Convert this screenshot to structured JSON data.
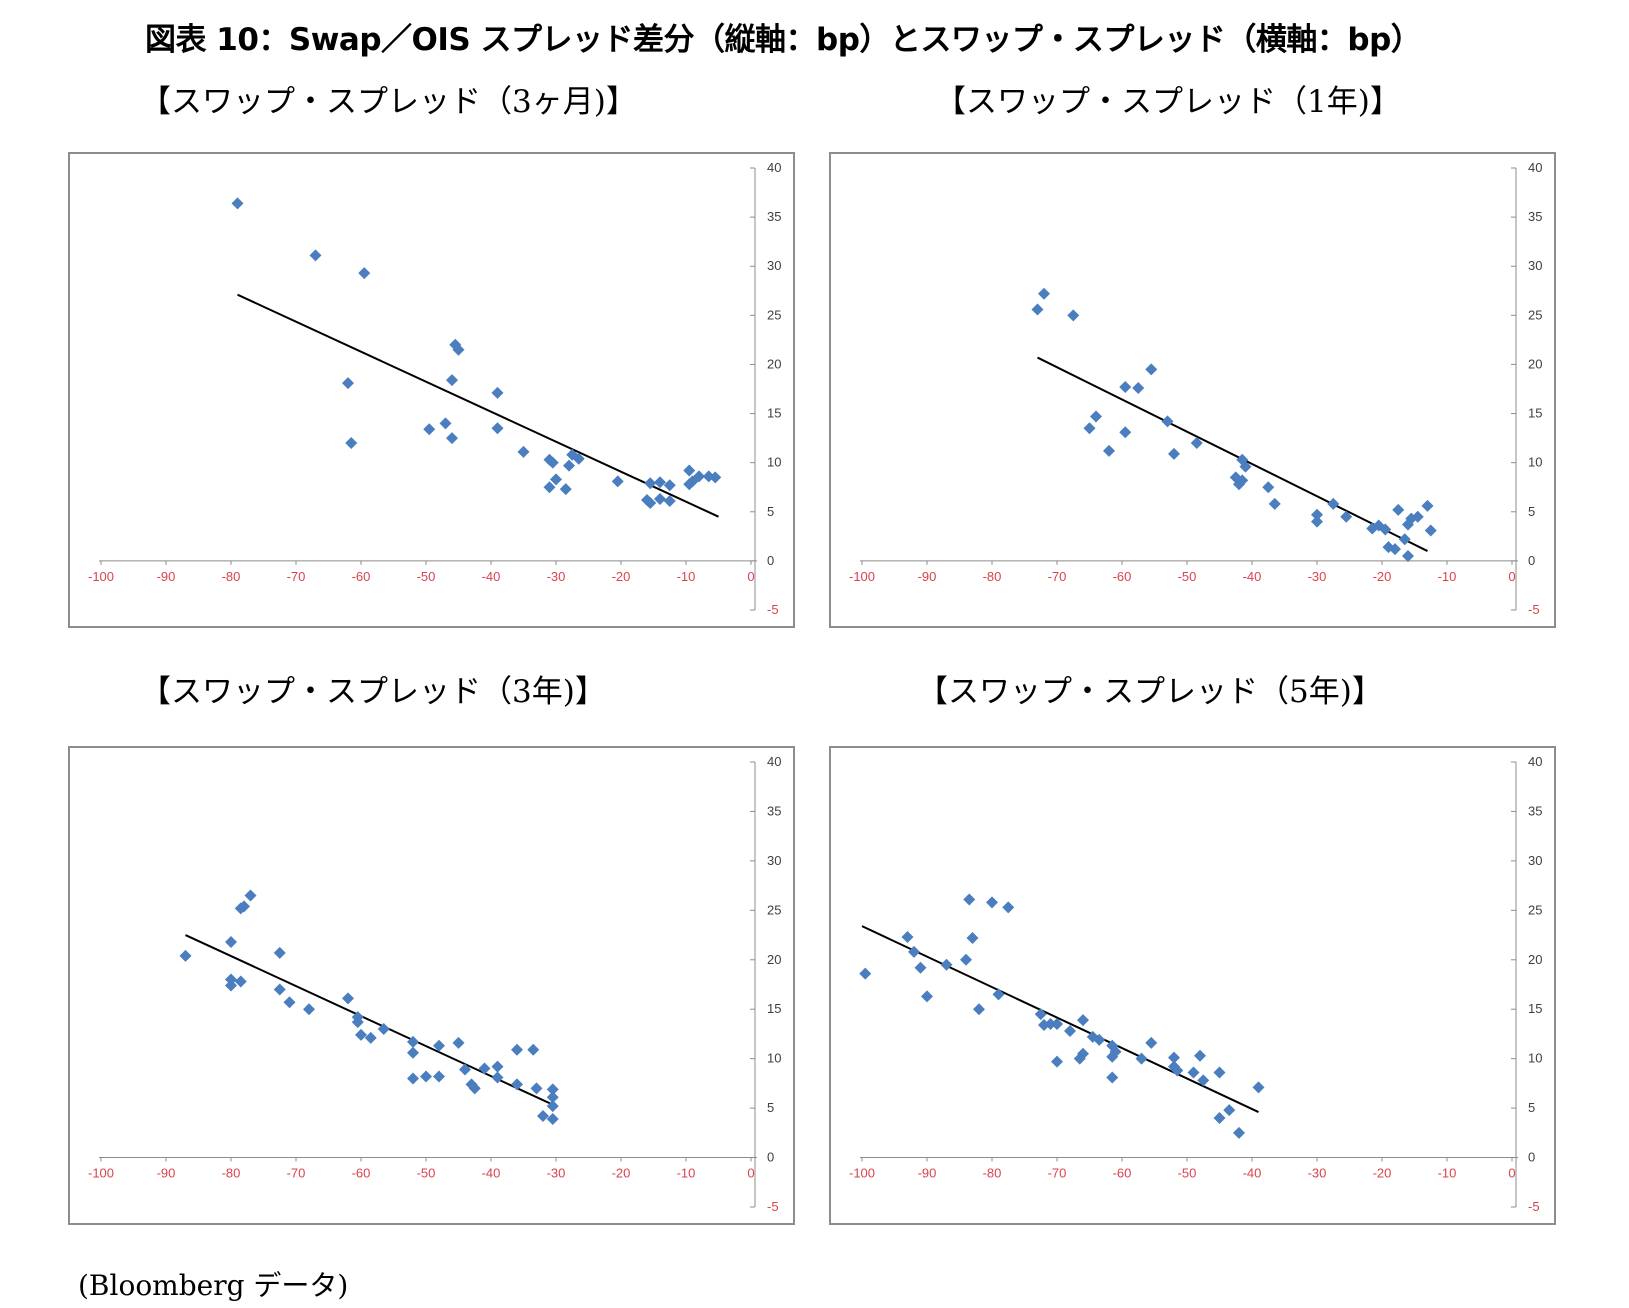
{
  "figure_title": "図表 10：Swap／OIS スプレッド差分（縦軸：bp）とスワップ・スプレッド（横軸：bp）",
  "source_note": "(Bloomberg データ)",
  "colors": {
    "marker": "#4a7ebf",
    "trendline": "#000000",
    "x_tick": "#d9434e",
    "y_tick": "#404040",
    "axis": "#8c8c8c"
  },
  "chart_data": [
    {
      "type": "scatter",
      "panel_title": "【スワップ・スプレッド（3ヶ月)】",
      "xlim": [
        -100,
        0
      ],
      "ylim": [
        -5,
        40
      ],
      "xticks": [
        -100,
        -90,
        -80,
        -70,
        -60,
        -50,
        -40,
        -30,
        -20,
        -10,
        0
      ],
      "yticks": [
        -5,
        0,
        5,
        10,
        15,
        20,
        25,
        30,
        35,
        40
      ],
      "grid": false,
      "points": [
        [
          -79,
          36.4
        ],
        [
          -67,
          31.1
        ],
        [
          -59.5,
          29.3
        ],
        [
          -62,
          18.1
        ],
        [
          -61.5,
          12.0
        ],
        [
          -45.5,
          22.0
        ],
        [
          -45,
          21.5
        ],
        [
          -46,
          18.4
        ],
        [
          -39,
          17.1
        ],
        [
          -47,
          14.0
        ],
        [
          -49.5,
          13.4
        ],
        [
          -46,
          12.5
        ],
        [
          -39,
          13.5
        ],
        [
          -35,
          11.1
        ],
        [
          -31,
          10.3
        ],
        [
          -30.5,
          10.0
        ],
        [
          -27.5,
          10.8
        ],
        [
          -26.5,
          10.4
        ],
        [
          -28,
          9.7
        ],
        [
          -30,
          8.3
        ],
        [
          -31,
          7.5
        ],
        [
          -28.5,
          7.3
        ],
        [
          -20.5,
          8.1
        ],
        [
          -15.5,
          7.9
        ],
        [
          -14,
          8.0
        ],
        [
          -12.5,
          7.7
        ],
        [
          -16,
          6.2
        ],
        [
          -15.5,
          5.9
        ],
        [
          -14,
          6.3
        ],
        [
          -12.5,
          6.1
        ],
        [
          -9.5,
          9.2
        ],
        [
          -9,
          8.1
        ],
        [
          -8,
          8.6
        ],
        [
          -6.5,
          8.6
        ],
        [
          -5.5,
          8.5
        ],
        [
          -9.5,
          7.8
        ]
      ],
      "trendline": [
        [
          -79,
          27.1
        ],
        [
          -5,
          4.5
        ]
      ]
    },
    {
      "type": "scatter",
      "panel_title": "【スワップ・スプレッド（1年)】",
      "xlim": [
        -100,
        0
      ],
      "ylim": [
        -5,
        40
      ],
      "xticks": [
        -100,
        -90,
        -80,
        -70,
        -60,
        -50,
        -40,
        -30,
        -20,
        -10,
        0
      ],
      "yticks": [
        -5,
        0,
        5,
        10,
        15,
        20,
        25,
        30,
        35,
        40
      ],
      "grid": false,
      "points": [
        [
          -72,
          27.2
        ],
        [
          -73,
          25.6
        ],
        [
          -67.5,
          25.0
        ],
        [
          -55.5,
          19.5
        ],
        [
          -59.5,
          17.7
        ],
        [
          -57.5,
          17.6
        ],
        [
          -64,
          14.7
        ],
        [
          -65,
          13.5
        ],
        [
          -59.5,
          13.1
        ],
        [
          -53,
          14.2
        ],
        [
          -62,
          11.2
        ],
        [
          -52,
          10.9
        ],
        [
          -48.5,
          12.0
        ],
        [
          -41.5,
          10.3
        ],
        [
          -41,
          9.6
        ],
        [
          -42.5,
          8.5
        ],
        [
          -41.5,
          8.2
        ],
        [
          -42,
          7.8
        ],
        [
          -37.5,
          7.5
        ],
        [
          -36.5,
          5.8
        ],
        [
          -30,
          4.7
        ],
        [
          -30,
          4.0
        ],
        [
          -27.5,
          5.8
        ],
        [
          -25.5,
          4.5
        ],
        [
          -21.5,
          3.3
        ],
        [
          -20.5,
          3.6
        ],
        [
          -19.5,
          3.2
        ],
        [
          -17.5,
          5.2
        ],
        [
          -15.5,
          4.3
        ],
        [
          -14.5,
          4.5
        ],
        [
          -16,
          3.7
        ],
        [
          -13,
          5.6
        ],
        [
          -12.5,
          3.1
        ],
        [
          -16.5,
          2.2
        ],
        [
          -19,
          1.4
        ],
        [
          -18,
          1.2
        ],
        [
          -16,
          0.5
        ]
      ],
      "trendline": [
        [
          -73,
          20.7
        ],
        [
          -13,
          1.0
        ]
      ]
    },
    {
      "type": "scatter",
      "panel_title": "【スワップ・スプレッド（3年)】",
      "xlim": [
        -100,
        0
      ],
      "ylim": [
        -5,
        40
      ],
      "xticks": [
        -100,
        -90,
        -80,
        -70,
        -60,
        -50,
        -40,
        -30,
        -20,
        -10,
        0
      ],
      "yticks": [
        -5,
        0,
        5,
        10,
        15,
        20,
        25,
        30,
        35,
        40
      ],
      "grid": false,
      "points": [
        [
          -87,
          20.4
        ],
        [
          -77,
          26.5
        ],
        [
          -78,
          25.4
        ],
        [
          -78.5,
          25.2
        ],
        [
          -80,
          21.8
        ],
        [
          -72.5,
          20.7
        ],
        [
          -80,
          18.0
        ],
        [
          -78.5,
          17.8
        ],
        [
          -80,
          17.4
        ],
        [
          -72.5,
          17.0
        ],
        [
          -71,
          15.7
        ],
        [
          -68,
          15.0
        ],
        [
          -62,
          16.1
        ],
        [
          -60.5,
          14.2
        ],
        [
          -60.5,
          13.7
        ],
        [
          -56.5,
          13.0
        ],
        [
          -60,
          12.4
        ],
        [
          -58.5,
          12.1
        ],
        [
          -52,
          11.7
        ],
        [
          -48,
          11.3
        ],
        [
          -45,
          11.6
        ],
        [
          -52,
          10.6
        ],
        [
          -36,
          10.9
        ],
        [
          -33.5,
          10.9
        ],
        [
          -39,
          9.2
        ],
        [
          -41,
          9.0
        ],
        [
          -44,
          8.9
        ],
        [
          -50,
          8.2
        ],
        [
          -48,
          8.2
        ],
        [
          -52,
          8.0
        ],
        [
          -39,
          8.1
        ],
        [
          -43,
          7.4
        ],
        [
          -36,
          7.4
        ],
        [
          -42.5,
          7.0
        ],
        [
          -33,
          7.0
        ],
        [
          -30.5,
          6.9
        ],
        [
          -30.5,
          6.1
        ],
        [
          -30.5,
          5.2
        ],
        [
          -32,
          4.2
        ],
        [
          -30.5,
          3.9
        ]
      ],
      "trendline": [
        [
          -87,
          22.5
        ],
        [
          -30,
          5.2
        ]
      ]
    },
    {
      "type": "scatter",
      "panel_title": "【スワップ・スプレッド（5年)】",
      "xlim": [
        -100,
        0
      ],
      "ylim": [
        -5,
        40
      ],
      "xticks": [
        -100,
        -90,
        -80,
        -70,
        -60,
        -50,
        -40,
        -30,
        -20,
        -10,
        0
      ],
      "yticks": [
        -5,
        0,
        5,
        10,
        15,
        20,
        25,
        30,
        35,
        40
      ],
      "grid": false,
      "points": [
        [
          -99.5,
          18.6
        ],
        [
          -83.5,
          26.1
        ],
        [
          -80,
          25.8
        ],
        [
          -77.5,
          25.3
        ],
        [
          -93,
          22.3
        ],
        [
          -83,
          22.2
        ],
        [
          -92,
          20.8
        ],
        [
          -84,
          20.0
        ],
        [
          -87,
          19.5
        ],
        [
          -91,
          19.2
        ],
        [
          -90,
          16.3
        ],
        [
          -79,
          16.5
        ],
        [
          -82,
          15.0
        ],
        [
          -72.5,
          14.5
        ],
        [
          -66,
          13.9
        ],
        [
          -72,
          13.4
        ],
        [
          -71,
          13.5
        ],
        [
          -70,
          13.5
        ],
        [
          -68,
          12.8
        ],
        [
          -64.5,
          12.2
        ],
        [
          -63.5,
          11.9
        ],
        [
          -61.5,
          11.3
        ],
        [
          -55.5,
          11.6
        ],
        [
          -61,
          10.7
        ],
        [
          -61.5,
          10.2
        ],
        [
          -66,
          10.5
        ],
        [
          -66.5,
          10.0
        ],
        [
          -70,
          9.7
        ],
        [
          -57,
          10.0
        ],
        [
          -52,
          10.1
        ],
        [
          -48,
          10.3
        ],
        [
          -52,
          9.2
        ],
        [
          -51.5,
          8.8
        ],
        [
          -49,
          8.6
        ],
        [
          -45,
          8.6
        ],
        [
          -61.5,
          8.1
        ],
        [
          -47.5,
          7.8
        ],
        [
          -39,
          7.1
        ],
        [
          -43.5,
          4.8
        ],
        [
          -45,
          4.0
        ],
        [
          -42,
          2.5
        ]
      ],
      "trendline": [
        [
          -100,
          23.4
        ],
        [
          -39,
          4.6
        ]
      ]
    }
  ]
}
